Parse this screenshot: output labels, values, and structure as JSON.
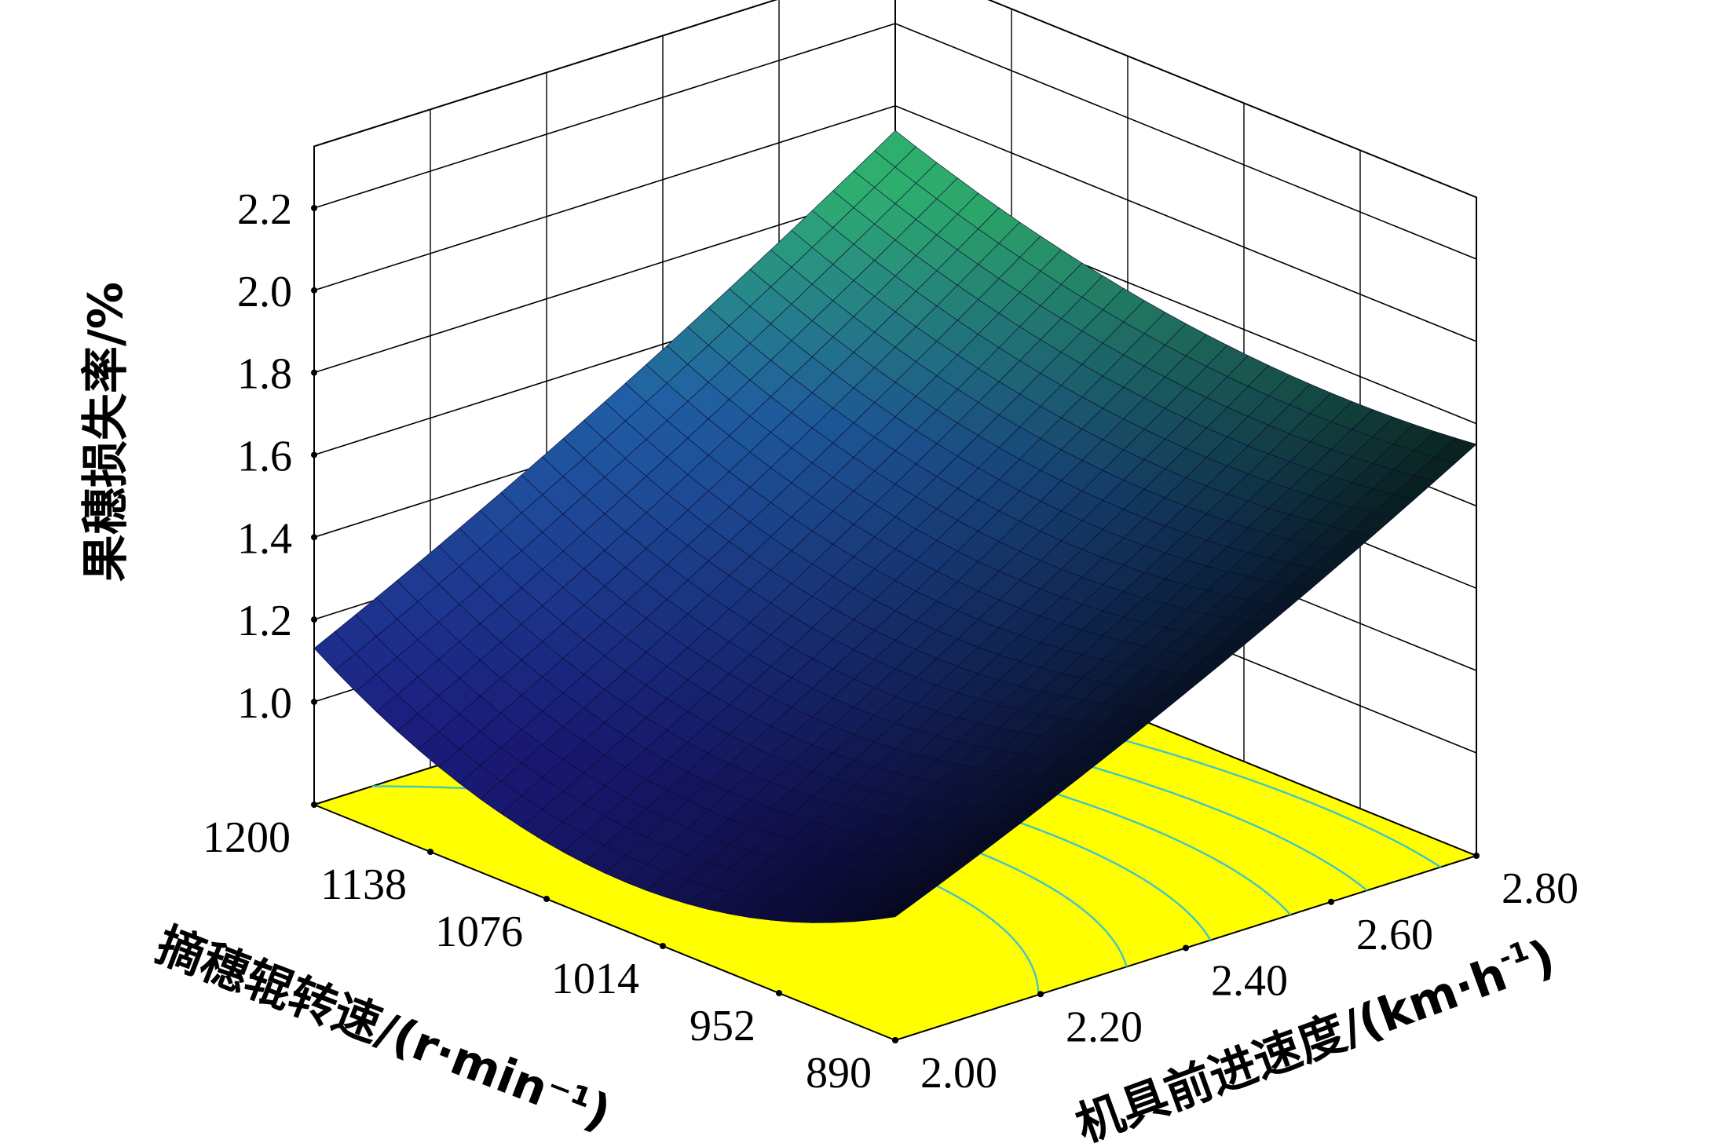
{
  "chart_data": {
    "type": "surface",
    "z_axis": {
      "label": "果穗损失率/%",
      "ticks": [
        "1.0",
        "1.2",
        "1.4",
        "1.6",
        "1.8",
        "2.0",
        "2.2"
      ],
      "range": [
        1.0,
        2.2
      ]
    },
    "x_axis": {
      "label": "摘穗辊转速/(r·min⁻¹)",
      "ticks": [
        "1200",
        "1138",
        "1076",
        "1014",
        "952",
        "890"
      ],
      "range": [
        890,
        1200
      ]
    },
    "y_axis": {
      "label_main": "机具前进速度/(km·h",
      "label_sup": "-1",
      "label_close": ")",
      "ticks": [
        "2.00",
        "2.20",
        "2.40",
        "2.60",
        "2.80"
      ],
      "range": [
        2.0,
        2.8
      ]
    },
    "surface_corners": [
      {
        "roller_speed": 1200,
        "forward_speed": 2.0,
        "loss_rate": 1.13
      },
      {
        "roller_speed": 890,
        "forward_speed": 2.0,
        "loss_rate": 1.05
      },
      {
        "roller_speed": 1200,
        "forward_speed": 2.8,
        "loss_rate": 1.82
      },
      {
        "roller_speed": 890,
        "forward_speed": 2.8,
        "loss_rate": 1.63
      }
    ],
    "surface_minimum": {
      "roller_speed": 1076,
      "forward_speed": 2.05,
      "loss_rate": 1.0
    },
    "contour_levels": [
      1.2,
      1.3,
      1.4,
      1.5,
      1.6,
      1.7
    ],
    "colors": {
      "surface_low": "#1a1a8c",
      "surface_mid": "#1f6fa6",
      "surface_high": "#2ea86a",
      "floor": "#ffff00",
      "contour": "#3fc6c6",
      "grid": "#000000"
    },
    "grid": true
  }
}
